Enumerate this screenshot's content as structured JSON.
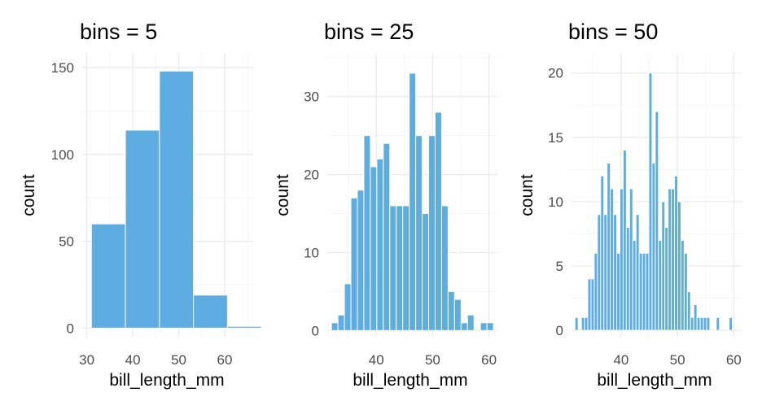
{
  "colors": {
    "bar": "#5DADE2",
    "grid": "#EBEBEB",
    "tick": "#4D4D4D"
  },
  "chart_data": [
    {
      "type": "bar",
      "title": "bins = 5",
      "xlabel": "bill_length_mm",
      "ylabel": "count",
      "grid": true,
      "xlim": [
        29,
        66.2
      ],
      "ylim": [
        -5,
        158
      ],
      "xticks": [
        30,
        40,
        50,
        60
      ],
      "yticks": [
        0,
        50,
        100,
        150
      ],
      "bin_width": 7.4,
      "bin_centers": [
        34.7,
        42.1,
        49.5,
        56.9,
        64.3
      ],
      "values": [
        60,
        114,
        148,
        19,
        1
      ]
    },
    {
      "type": "bar",
      "title": "bins = 25",
      "xlabel": "bill_length_mm",
      "ylabel": "count",
      "grid": true,
      "xlim": [
        31.3,
        61.5
      ],
      "ylim": [
        -0.8,
        35.5
      ],
      "xticks": [
        40,
        50,
        60
      ],
      "yticks": [
        0,
        10,
        20,
        30
      ],
      "bin_width": 1.15,
      "bin_centers": [
        32.62,
        33.77,
        34.92,
        36.07,
        37.22,
        38.37,
        39.52,
        40.67,
        41.82,
        42.97,
        44.12,
        45.27,
        46.42,
        47.57,
        48.72,
        49.87,
        51.02,
        52.17,
        53.32,
        54.47,
        55.62,
        56.77,
        57.92,
        59.07,
        60.22
      ],
      "values": [
        1,
        2,
        6,
        17,
        18,
        25,
        21,
        22,
        24,
        16,
        16,
        16,
        33,
        25,
        15,
        25,
        28,
        16,
        5,
        4,
        1,
        2,
        0,
        1,
        1
      ]
    },
    {
      "type": "bar",
      "title": "bins = 50",
      "xlabel": "bill_length_mm",
      "ylabel": "count",
      "grid": true,
      "xlim": [
        31.2,
        61.4
      ],
      "ylim": [
        -0.5,
        21.5
      ],
      "xticks": [
        40,
        50,
        60
      ],
      "yticks": [
        0,
        5,
        10,
        15,
        20
      ],
      "bin_width": 0.57,
      "bin_centers": [
        32.1,
        32.67,
        33.24,
        33.81,
        34.38,
        34.95,
        35.52,
        36.09,
        36.66,
        37.23,
        37.8,
        38.37,
        38.94,
        39.51,
        40.08,
        40.65,
        41.22,
        41.79,
        42.36,
        42.93,
        43.5,
        44.07,
        44.64,
        45.21,
        45.78,
        46.35,
        46.92,
        47.49,
        48.06,
        48.63,
        49.2,
        49.77,
        50.34,
        50.91,
        51.48,
        52.05,
        52.62,
        53.19,
        53.76,
        54.33,
        54.9,
        55.47,
        56.04,
        56.61,
        57.18,
        57.75,
        58.32,
        58.89,
        59.46,
        60.03
      ],
      "values": [
        1,
        0,
        1,
        1,
        4,
        4,
        6,
        9,
        12,
        9,
        13,
        11,
        9,
        6,
        11,
        14,
        8,
        11,
        7,
        9,
        6,
        6,
        6,
        20,
        13,
        17,
        7,
        10,
        8,
        11,
        11,
        12,
        10,
        7,
        6,
        3,
        1,
        2,
        1,
        1,
        1,
        1,
        0,
        0,
        1,
        0,
        0,
        0,
        1,
        0
      ]
    }
  ]
}
